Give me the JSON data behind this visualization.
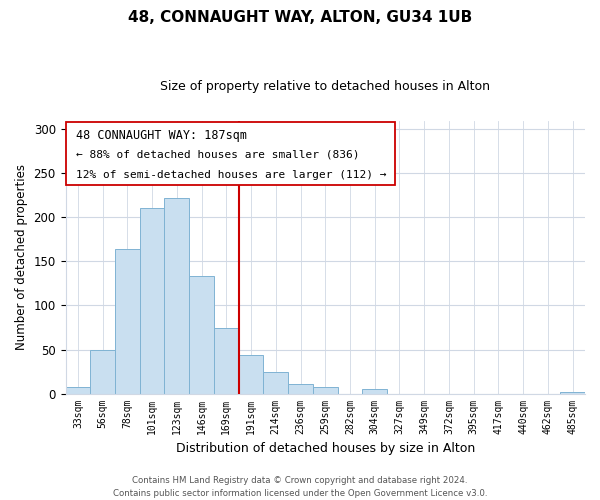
{
  "title": "48, CONNAUGHT WAY, ALTON, GU34 1UB",
  "subtitle": "Size of property relative to detached houses in Alton",
  "xlabel": "Distribution of detached houses by size in Alton",
  "ylabel": "Number of detached properties",
  "bar_labels": [
    "33sqm",
    "56sqm",
    "78sqm",
    "101sqm",
    "123sqm",
    "146sqm",
    "169sqm",
    "191sqm",
    "214sqm",
    "236sqm",
    "259sqm",
    "282sqm",
    "304sqm",
    "327sqm",
    "349sqm",
    "372sqm",
    "395sqm",
    "417sqm",
    "440sqm",
    "462sqm",
    "485sqm"
  ],
  "bar_values": [
    7,
    50,
    164,
    211,
    222,
    133,
    75,
    44,
    25,
    11,
    8,
    0,
    5,
    0,
    0,
    0,
    0,
    0,
    0,
    0,
    2
  ],
  "bar_color": "#c9dff0",
  "bar_edge_color": "#7fb3d3",
  "annotation_title": "48 CONNAUGHT WAY: 187sqm",
  "annotation_line1": "← 88% of detached houses are smaller (836)",
  "annotation_line2": "12% of semi-detached houses are larger (112) →",
  "property_line_bar_index": 7,
  "ylim": [
    0,
    310
  ],
  "yticks": [
    0,
    50,
    100,
    150,
    200,
    250,
    300
  ],
  "footer_line1": "Contains HM Land Registry data © Crown copyright and database right 2024.",
  "footer_line2": "Contains public sector information licensed under the Open Government Licence v3.0.",
  "bg_color": "#ffffff",
  "grid_color": "#d0d8e4",
  "title_fontsize": 11,
  "subtitle_fontsize": 9
}
